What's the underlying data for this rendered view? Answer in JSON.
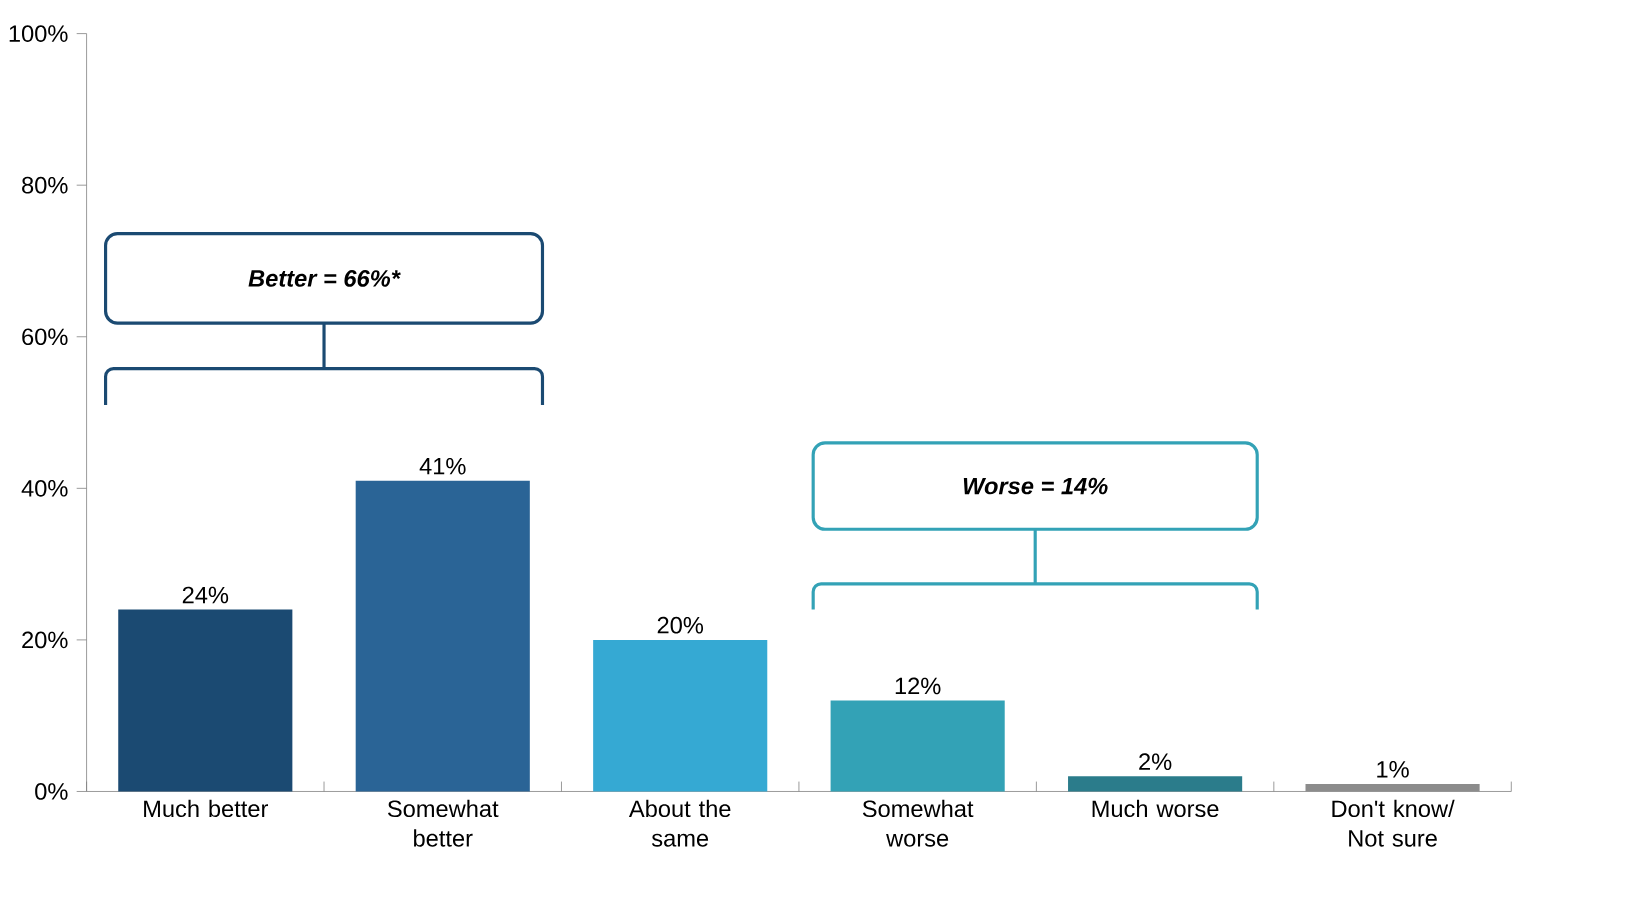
{
  "chart_data": {
    "type": "bar",
    "categories": [
      "Much better",
      "Somewhat better",
      "About the same",
      "Somewhat worse",
      "Much worse",
      "Don't know/ Not sure"
    ],
    "values": [
      24,
      41,
      20,
      12,
      2,
      1
    ],
    "colors": [
      "#1b4a72",
      "#2a6496",
      "#35a9d3",
      "#33a2b6",
      "#2b7c8b",
      "#8c8c8c"
    ],
    "value_labels": [
      "24%",
      "41%",
      "20%",
      "12%",
      "2%",
      "1%"
    ],
    "ylim": [
      0,
      100
    ],
    "yticks": [
      {
        "value": 0,
        "label": "0%"
      },
      {
        "value": 20,
        "label": "20%"
      },
      {
        "value": 40,
        "label": "40%"
      },
      {
        "value": 60,
        "label": "60%"
      },
      {
        "value": 80,
        "label": "80%"
      },
      {
        "value": 100,
        "label": "100%"
      }
    ],
    "annotations": [
      "Better = 66%*",
      "Worse = 14%"
    ]
  }
}
